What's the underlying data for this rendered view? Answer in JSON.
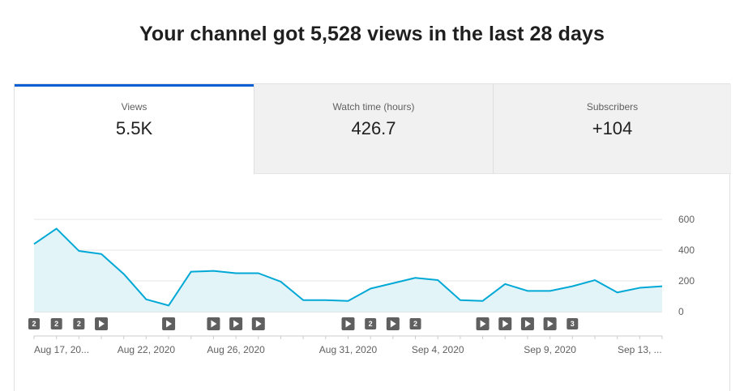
{
  "headline": "Your channel got 5,528 views in the last 28 days",
  "tabs": [
    {
      "label": "Views",
      "value": "5.5K",
      "selected": true
    },
    {
      "label": "Watch time (hours)",
      "value": "426.7",
      "selected": false
    },
    {
      "label": "Subscribers",
      "value": "+104",
      "selected": false
    }
  ],
  "colors": {
    "accent": "#065fd4",
    "line": "#00a8d6",
    "area": "#e3f4f9",
    "marker": "#606060"
  },
  "chart_data": {
    "type": "area",
    "title": "",
    "xlabel": "",
    "ylabel": "",
    "ylim": [
      0,
      600
    ],
    "yticks": [
      0,
      200,
      400,
      600
    ],
    "grid": true,
    "x": [
      "Aug 17",
      "Aug 18",
      "Aug 19",
      "Aug 20",
      "Aug 21",
      "Aug 22",
      "Aug 23",
      "Aug 24",
      "Aug 25",
      "Aug 26",
      "Aug 27",
      "Aug 28",
      "Aug 29",
      "Aug 30",
      "Aug 31",
      "Sep 1",
      "Sep 2",
      "Sep 3",
      "Sep 4",
      "Sep 5",
      "Sep 6",
      "Sep 7",
      "Sep 8",
      "Sep 9",
      "Sep 10",
      "Sep 11",
      "Sep 12",
      "Sep 13",
      "Sep 14"
    ],
    "values": [
      440,
      540,
      395,
      375,
      245,
      80,
      40,
      260,
      265,
      250,
      250,
      195,
      75,
      75,
      70,
      150,
      185,
      220,
      205,
      75,
      70,
      180,
      135,
      135,
      165,
      205,
      125,
      155,
      165
    ],
    "xtick_labels": [
      {
        "index": 0,
        "label": "Aug 17, 20..."
      },
      {
        "index": 5,
        "label": "Aug 22, 2020"
      },
      {
        "index": 9,
        "label": "Aug 26, 2020"
      },
      {
        "index": 14,
        "label": "Aug 31, 2020"
      },
      {
        "index": 18,
        "label": "Sep 4, 2020"
      },
      {
        "index": 23,
        "label": "Sep 9, 2020"
      },
      {
        "index": 27,
        "label": "Sep 13, ..."
      }
    ],
    "markers": [
      {
        "index": 0,
        "kind": "count",
        "text": "2"
      },
      {
        "index": 1,
        "kind": "count",
        "text": "2"
      },
      {
        "index": 2,
        "kind": "count",
        "text": "2"
      },
      {
        "index": 3,
        "kind": "video",
        "text": ""
      },
      {
        "index": 6,
        "kind": "video",
        "text": ""
      },
      {
        "index": 8,
        "kind": "video",
        "text": ""
      },
      {
        "index": 9,
        "kind": "video",
        "text": ""
      },
      {
        "index": 10,
        "kind": "video",
        "text": ""
      },
      {
        "index": 14,
        "kind": "video",
        "text": ""
      },
      {
        "index": 15,
        "kind": "count",
        "text": "2"
      },
      {
        "index": 16,
        "kind": "video",
        "text": ""
      },
      {
        "index": 17,
        "kind": "count",
        "text": "2"
      },
      {
        "index": 20,
        "kind": "video",
        "text": ""
      },
      {
        "index": 21,
        "kind": "video",
        "text": ""
      },
      {
        "index": 22,
        "kind": "video",
        "text": ""
      },
      {
        "index": 23,
        "kind": "video",
        "text": ""
      },
      {
        "index": 24,
        "kind": "count",
        "text": "3"
      }
    ]
  }
}
